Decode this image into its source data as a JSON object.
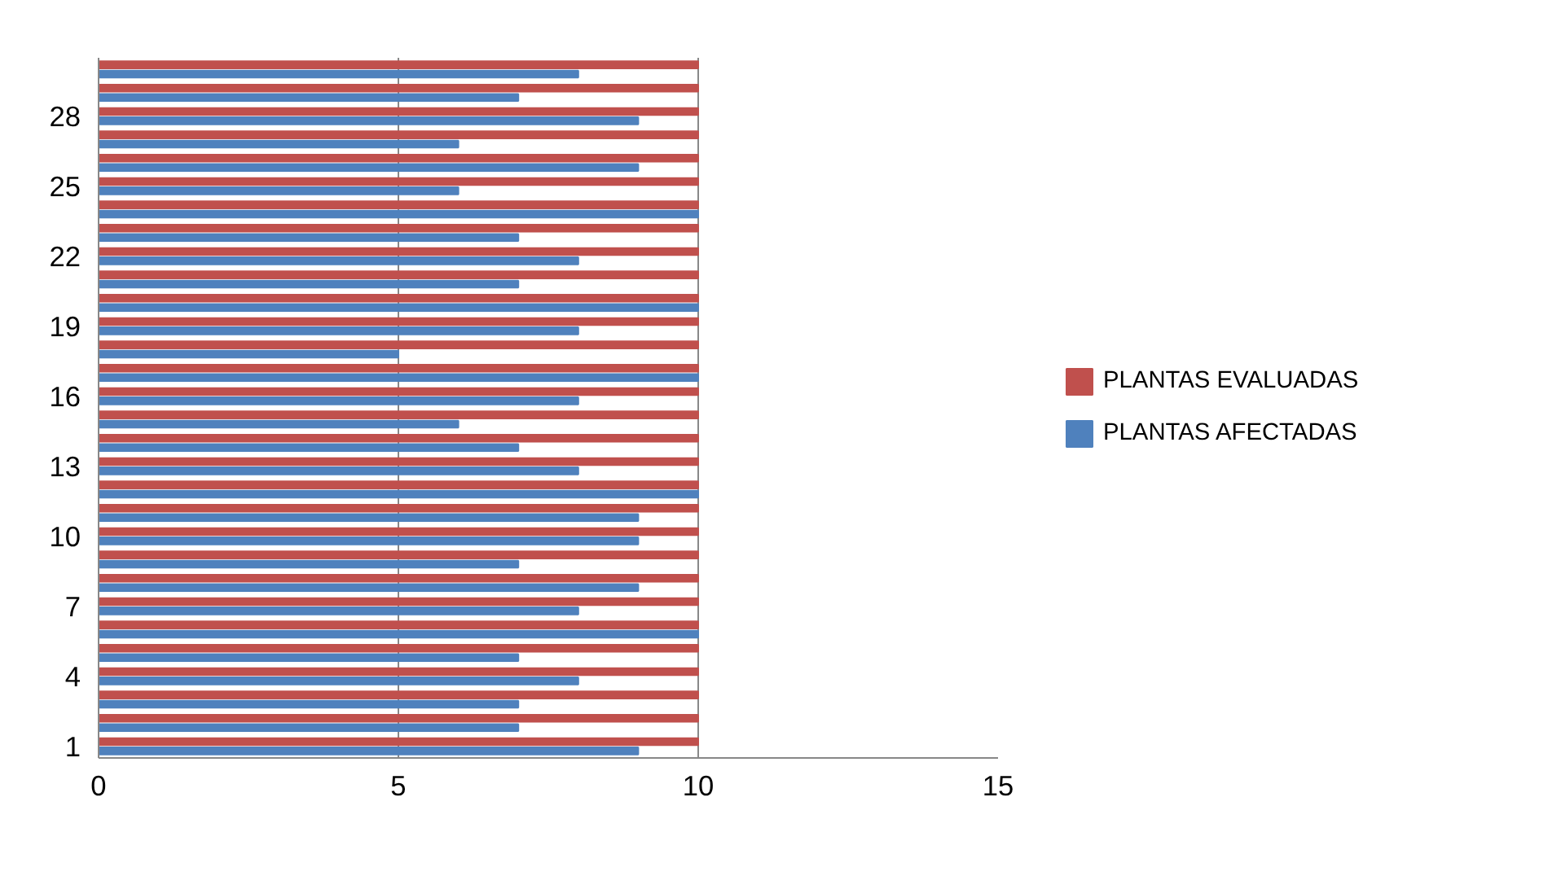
{
  "chart_data": {
    "type": "bar",
    "orientation": "horizontal",
    "categories": [
      null,
      null,
      "28",
      null,
      null,
      "25",
      null,
      null,
      "22",
      null,
      null,
      "19",
      null,
      null,
      "16",
      null,
      null,
      "13",
      null,
      null,
      "10",
      null,
      null,
      "7",
      null,
      null,
      "4",
      null,
      null,
      "1"
    ],
    "series": [
      {
        "name": "PLANTAS AFECTADAS",
        "color": "#4f81bd",
        "values": [
          8,
          7,
          9,
          6,
          9,
          6,
          10,
          7,
          8,
          7,
          10,
          8,
          5,
          10,
          8,
          6,
          7,
          8,
          10,
          9,
          9,
          7,
          9,
          8,
          10,
          7,
          8,
          7,
          7,
          9
        ]
      },
      {
        "name": "PLANTAS EVALUADAS",
        "color": "#c0504d",
        "values": [
          10,
          10,
          10,
          10,
          10,
          10,
          10,
          10,
          10,
          10,
          10,
          10,
          10,
          10,
          10,
          10,
          10,
          10,
          10,
          10,
          10,
          10,
          10,
          10,
          10,
          10,
          10,
          10,
          10,
          10
        ]
      }
    ],
    "xlim": [
      0,
      15
    ],
    "xticks": [
      0,
      5,
      10,
      15
    ],
    "grid": "x",
    "legend": "right"
  }
}
